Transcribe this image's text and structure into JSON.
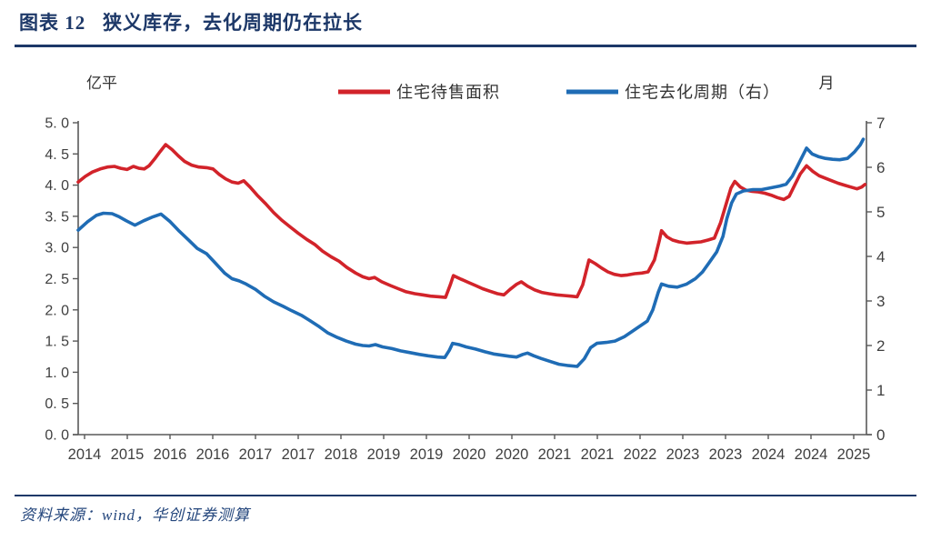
{
  "header": {
    "title": "图表 12   狭义库存，去化周期仍在拉长"
  },
  "footer": {
    "source": "资料来源：wind，华创证券测算"
  },
  "colors": {
    "accent_navy": "#1D3868",
    "axis_gray": "#595959",
    "tick_text": "#3F3F3F",
    "legend_text": "#333333",
    "red": "#D2232A",
    "blue": "#1F6CB5"
  },
  "chart_data": {
    "type": "line",
    "title": "狭义库存，去化周期仍在拉长",
    "grid": false,
    "legend_position": "top",
    "legend": [
      {
        "label": "住宅待售面积",
        "color": "#D2232A",
        "axis": "left"
      },
      {
        "label": "住宅去化周期（右）",
        "color": "#1F6CB5",
        "axis": "right"
      }
    ],
    "left_axis": {
      "unit": "亿平",
      "min": 0,
      "max": 5,
      "step": 0.5,
      "tick_labels": [
        "5. 0",
        "4. 5",
        "4. 0",
        "3. 5",
        "3. 0",
        "2. 5",
        "2. 0",
        "1. 5",
        "1. 0",
        "0. 5",
        "0. 0"
      ]
    },
    "right_axis": {
      "unit": "月",
      "min": 0,
      "max": 7,
      "step": 1,
      "tick_labels": [
        "7",
        "6",
        "5",
        "4",
        "3",
        "2",
        "1",
        "0"
      ]
    },
    "x_axis": {
      "tick_labels": [
        "2014",
        "2015",
        "2016",
        "2016",
        "2017",
        "2017",
        "2018",
        "2019",
        "2019",
        "2020",
        "2020",
        "2021",
        "2021",
        "2022",
        "2023",
        "2023",
        "2024",
        "2024",
        "2025"
      ]
    },
    "series": [
      {
        "name": "住宅待售面积",
        "color": "#D2232A",
        "axis": "left",
        "points": [
          [
            0.0,
            4.05
          ],
          [
            0.009,
            4.14
          ],
          [
            0.018,
            4.21
          ],
          [
            0.028,
            4.26
          ],
          [
            0.037,
            4.29
          ],
          [
            0.046,
            4.3
          ],
          [
            0.054,
            4.27
          ],
          [
            0.062,
            4.25
          ],
          [
            0.07,
            4.3
          ],
          [
            0.077,
            4.27
          ],
          [
            0.084,
            4.26
          ],
          [
            0.09,
            4.31
          ],
          [
            0.097,
            4.42
          ],
          [
            0.104,
            4.54
          ],
          [
            0.111,
            4.65
          ],
          [
            0.119,
            4.57
          ],
          [
            0.127,
            4.47
          ],
          [
            0.135,
            4.38
          ],
          [
            0.144,
            4.32
          ],
          [
            0.153,
            4.29
          ],
          [
            0.163,
            4.28
          ],
          [
            0.171,
            4.26
          ],
          [
            0.179,
            4.17
          ],
          [
            0.187,
            4.1
          ],
          [
            0.195,
            4.05
          ],
          [
            0.203,
            4.03
          ],
          [
            0.21,
            4.07
          ],
          [
            0.218,
            3.97
          ],
          [
            0.227,
            3.84
          ],
          [
            0.238,
            3.7
          ],
          [
            0.248,
            3.56
          ],
          [
            0.258,
            3.44
          ],
          [
            0.269,
            3.33
          ],
          [
            0.279,
            3.23
          ],
          [
            0.29,
            3.13
          ],
          [
            0.3,
            3.05
          ],
          [
            0.31,
            2.94
          ],
          [
            0.321,
            2.85
          ],
          [
            0.331,
            2.78
          ],
          [
            0.341,
            2.68
          ],
          [
            0.352,
            2.59
          ],
          [
            0.361,
            2.53
          ],
          [
            0.369,
            2.5
          ],
          [
            0.376,
            2.52
          ],
          [
            0.385,
            2.45
          ],
          [
            0.396,
            2.39
          ],
          [
            0.406,
            2.34
          ],
          [
            0.416,
            2.29
          ],
          [
            0.427,
            2.26
          ],
          [
            0.437,
            2.24
          ],
          [
            0.447,
            2.22
          ],
          [
            0.458,
            2.21
          ],
          [
            0.466,
            2.2
          ],
          [
            0.472,
            2.4
          ],
          [
            0.476,
            2.55
          ],
          [
            0.486,
            2.49
          ],
          [
            0.495,
            2.44
          ],
          [
            0.504,
            2.39
          ],
          [
            0.513,
            2.34
          ],
          [
            0.522,
            2.3
          ],
          [
            0.532,
            2.26
          ],
          [
            0.54,
            2.24
          ],
          [
            0.548,
            2.33
          ],
          [
            0.556,
            2.41
          ],
          [
            0.562,
            2.45
          ],
          [
            0.57,
            2.38
          ],
          [
            0.579,
            2.32
          ],
          [
            0.588,
            2.28
          ],
          [
            0.597,
            2.26
          ],
          [
            0.607,
            2.24
          ],
          [
            0.616,
            2.23
          ],
          [
            0.625,
            2.22
          ],
          [
            0.633,
            2.21
          ],
          [
            0.64,
            2.4
          ],
          [
            0.648,
            2.8
          ],
          [
            0.656,
            2.74
          ],
          [
            0.664,
            2.67
          ],
          [
            0.672,
            2.61
          ],
          [
            0.68,
            2.57
          ],
          [
            0.689,
            2.55
          ],
          [
            0.697,
            2.56
          ],
          [
            0.706,
            2.58
          ],
          [
            0.715,
            2.59
          ],
          [
            0.723,
            2.61
          ],
          [
            0.731,
            2.8
          ],
          [
            0.737,
            3.1
          ],
          [
            0.74,
            3.27
          ],
          [
            0.747,
            3.17
          ],
          [
            0.754,
            3.12
          ],
          [
            0.762,
            3.09
          ],
          [
            0.772,
            3.07
          ],
          [
            0.781,
            3.08
          ],
          [
            0.79,
            3.09
          ],
          [
            0.799,
            3.12
          ],
          [
            0.807,
            3.15
          ],
          [
            0.815,
            3.4
          ],
          [
            0.822,
            3.7
          ],
          [
            0.828,
            3.95
          ],
          [
            0.833,
            4.06
          ],
          [
            0.84,
            3.97
          ],
          [
            0.847,
            3.92
          ],
          [
            0.855,
            3.9
          ],
          [
            0.863,
            3.89
          ],
          [
            0.871,
            3.87
          ],
          [
            0.879,
            3.84
          ],
          [
            0.887,
            3.8
          ],
          [
            0.895,
            3.77
          ],
          [
            0.902,
            3.82
          ],
          [
            0.909,
            4.0
          ],
          [
            0.916,
            4.18
          ],
          [
            0.924,
            4.31
          ],
          [
            0.932,
            4.22
          ],
          [
            0.94,
            4.15
          ],
          [
            0.948,
            4.11
          ],
          [
            0.956,
            4.07
          ],
          [
            0.964,
            4.03
          ],
          [
            0.972,
            4.0
          ],
          [
            0.98,
            3.97
          ],
          [
            0.988,
            3.94
          ],
          [
            0.994,
            3.97
          ],
          [
            0.998,
            4.01
          ]
        ]
      },
      {
        "name": "住宅去化周期（右）",
        "color": "#1F6CB5",
        "axis": "right",
        "points": [
          [
            0.0,
            4.59
          ],
          [
            0.012,
            4.78
          ],
          [
            0.023,
            4.92
          ],
          [
            0.032,
            4.97
          ],
          [
            0.043,
            4.96
          ],
          [
            0.052,
            4.89
          ],
          [
            0.061,
            4.8
          ],
          [
            0.072,
            4.7
          ],
          [
            0.083,
            4.8
          ],
          [
            0.095,
            4.89
          ],
          [
            0.105,
            4.95
          ],
          [
            0.116,
            4.79
          ],
          [
            0.128,
            4.57
          ],
          [
            0.14,
            4.37
          ],
          [
            0.151,
            4.18
          ],
          [
            0.163,
            4.06
          ],
          [
            0.174,
            3.85
          ],
          [
            0.186,
            3.62
          ],
          [
            0.195,
            3.5
          ],
          [
            0.204,
            3.45
          ],
          [
            0.213,
            3.38
          ],
          [
            0.225,
            3.26
          ],
          [
            0.236,
            3.11
          ],
          [
            0.248,
            2.98
          ],
          [
            0.26,
            2.88
          ],
          [
            0.271,
            2.78
          ],
          [
            0.283,
            2.68
          ],
          [
            0.294,
            2.56
          ],
          [
            0.306,
            2.42
          ],
          [
            0.317,
            2.28
          ],
          [
            0.329,
            2.18
          ],
          [
            0.34,
            2.1
          ],
          [
            0.352,
            2.03
          ],
          [
            0.361,
            2.0
          ],
          [
            0.369,
            1.99
          ],
          [
            0.377,
            2.02
          ],
          [
            0.386,
            1.97
          ],
          [
            0.398,
            1.93
          ],
          [
            0.409,
            1.88
          ],
          [
            0.421,
            1.84
          ],
          [
            0.433,
            1.8
          ],
          [
            0.444,
            1.77
          ],
          [
            0.456,
            1.74
          ],
          [
            0.465,
            1.73
          ],
          [
            0.471,
            1.9
          ],
          [
            0.475,
            2.05
          ],
          [
            0.483,
            2.02
          ],
          [
            0.492,
            1.97
          ],
          [
            0.504,
            1.92
          ],
          [
            0.516,
            1.86
          ],
          [
            0.527,
            1.81
          ],
          [
            0.539,
            1.78
          ],
          [
            0.547,
            1.76
          ],
          [
            0.556,
            1.74
          ],
          [
            0.564,
            1.8
          ],
          [
            0.57,
            1.83
          ],
          [
            0.578,
            1.77
          ],
          [
            0.587,
            1.71
          ],
          [
            0.599,
            1.64
          ],
          [
            0.61,
            1.58
          ],
          [
            0.622,
            1.55
          ],
          [
            0.633,
            1.53
          ],
          [
            0.642,
            1.7
          ],
          [
            0.65,
            1.95
          ],
          [
            0.658,
            2.05
          ],
          [
            0.67,
            2.07
          ],
          [
            0.681,
            2.1
          ],
          [
            0.693,
            2.2
          ],
          [
            0.704,
            2.33
          ],
          [
            0.714,
            2.45
          ],
          [
            0.722,
            2.55
          ],
          [
            0.729,
            2.8
          ],
          [
            0.736,
            3.2
          ],
          [
            0.74,
            3.38
          ],
          [
            0.749,
            3.33
          ],
          [
            0.76,
            3.31
          ],
          [
            0.772,
            3.38
          ],
          [
            0.783,
            3.5
          ],
          [
            0.792,
            3.65
          ],
          [
            0.8,
            3.85
          ],
          [
            0.81,
            4.1
          ],
          [
            0.818,
            4.45
          ],
          [
            0.823,
            4.85
          ],
          [
            0.829,
            5.2
          ],
          [
            0.835,
            5.4
          ],
          [
            0.844,
            5.47
          ],
          [
            0.856,
            5.5
          ],
          [
            0.867,
            5.5
          ],
          [
            0.879,
            5.54
          ],
          [
            0.89,
            5.58
          ],
          [
            0.898,
            5.62
          ],
          [
            0.906,
            5.8
          ],
          [
            0.916,
            6.15
          ],
          [
            0.924,
            6.43
          ],
          [
            0.931,
            6.3
          ],
          [
            0.939,
            6.24
          ],
          [
            0.948,
            6.2
          ],
          [
            0.957,
            6.18
          ],
          [
            0.966,
            6.17
          ],
          [
            0.976,
            6.2
          ],
          [
            0.985,
            6.35
          ],
          [
            0.992,
            6.5
          ],
          [
            0.996,
            6.63
          ]
        ]
      }
    ]
  }
}
